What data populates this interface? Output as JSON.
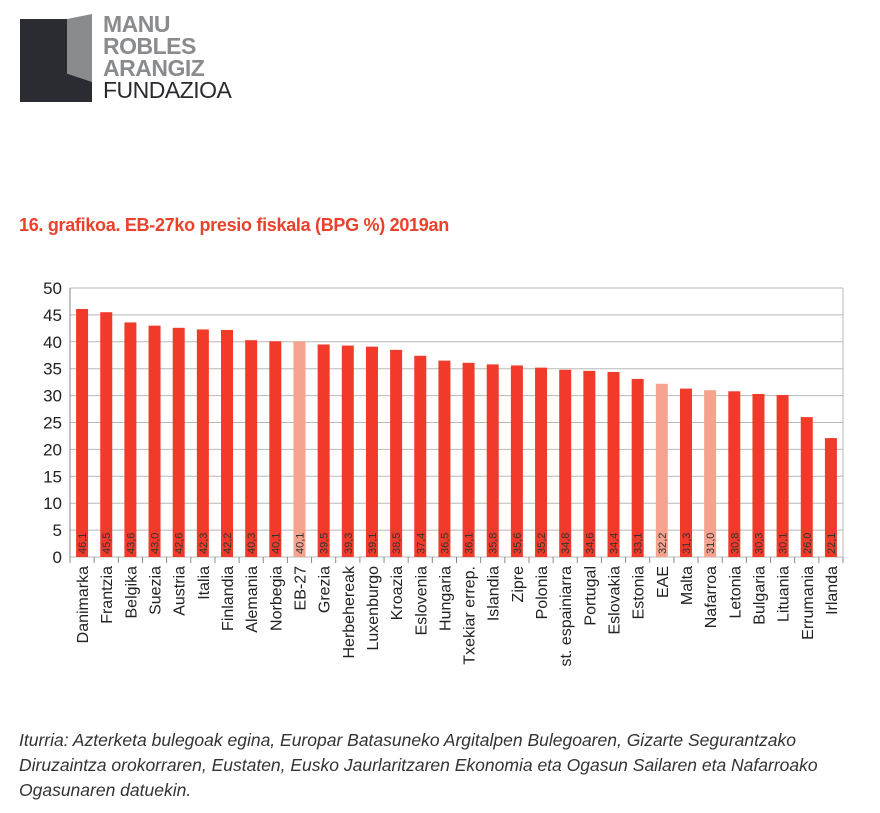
{
  "logo": {
    "lines": [
      "MANU",
      "ROBLES",
      "ARANGIZ",
      "FUNDAZIOA"
    ]
  },
  "title": "16. grafikoa. EB-27ko presio fiskala (BPG %) 2019an",
  "chart_data": {
    "type": "bar",
    "title": "16. grafikoa. EB-27ko presio fiskala (BPG %) 2019an",
    "xlabel": "",
    "ylabel": "",
    "ylim": [
      0,
      50
    ],
    "yticks": [
      0,
      5,
      10,
      15,
      20,
      25,
      30,
      35,
      40,
      45,
      50
    ],
    "grid": true,
    "legend": "none",
    "categories": [
      "Danimarka",
      "Frantzia",
      "Belgika",
      "Suezia",
      "Austria",
      "Italia",
      "Finlandia",
      "Alemania",
      "Norbegia",
      "EB-27",
      "Grezia",
      "Herbehereak",
      "Luxenburgo",
      "Kroazia",
      "Eslovenia",
      "Hungaria",
      "Txekiar errep.",
      "Islandia",
      "Zipre",
      "Polonia",
      "st. espainiarra",
      "Portugal",
      "Eslovakia",
      "Estonia",
      "EAE",
      "Malta",
      "Nafarroa",
      "Letonia",
      "Bulgaria",
      "Lituania",
      "Errumania",
      "Irlanda"
    ],
    "values": [
      46.1,
      45.5,
      43.6,
      43.0,
      42.6,
      42.3,
      42.2,
      40.3,
      40.1,
      40.1,
      39.5,
      39.3,
      39.1,
      38.5,
      37.4,
      36.5,
      36.1,
      35.8,
      35.6,
      35.2,
      34.8,
      34.6,
      34.4,
      33.1,
      32.2,
      31.3,
      31.0,
      30.8,
      30.3,
      30.1,
      26.0,
      22.1
    ],
    "value_labels": [
      "46,1",
      "45,5",
      "43,6",
      "43,0",
      "42,6",
      "42,3",
      "42,2",
      "40,3",
      "40,1",
      "40,1",
      "39,5",
      "39,3",
      "39,1",
      "38,5",
      "37,4",
      "36,5",
      "36,1",
      "35,8",
      "35,6",
      "35,2",
      "34,8",
      "34,6",
      "34,4",
      "33,1",
      "32,2",
      "31,3",
      "31,0",
      "30,8",
      "30,3",
      "30,1",
      "26,0",
      "22,1"
    ],
    "highlighted": [
      "EB-27",
      "EAE",
      "Nafarroa"
    ],
    "colors": {
      "bar": "#f23a2a",
      "highlight": "#f5a28f",
      "grid": "#b8b8b8"
    }
  },
  "source": "Iturria: Azterketa bulegoak egina, Europar Batasuneko Argitalpen Bulegoaren, Gizarte Segurantzako Diruzaintza orokorraren, Eustaten,  Eusko Jaurlaritzaren Ekonomia eta Ogasun Sailaren eta Nafarroako Ogasunaren datuekin."
}
